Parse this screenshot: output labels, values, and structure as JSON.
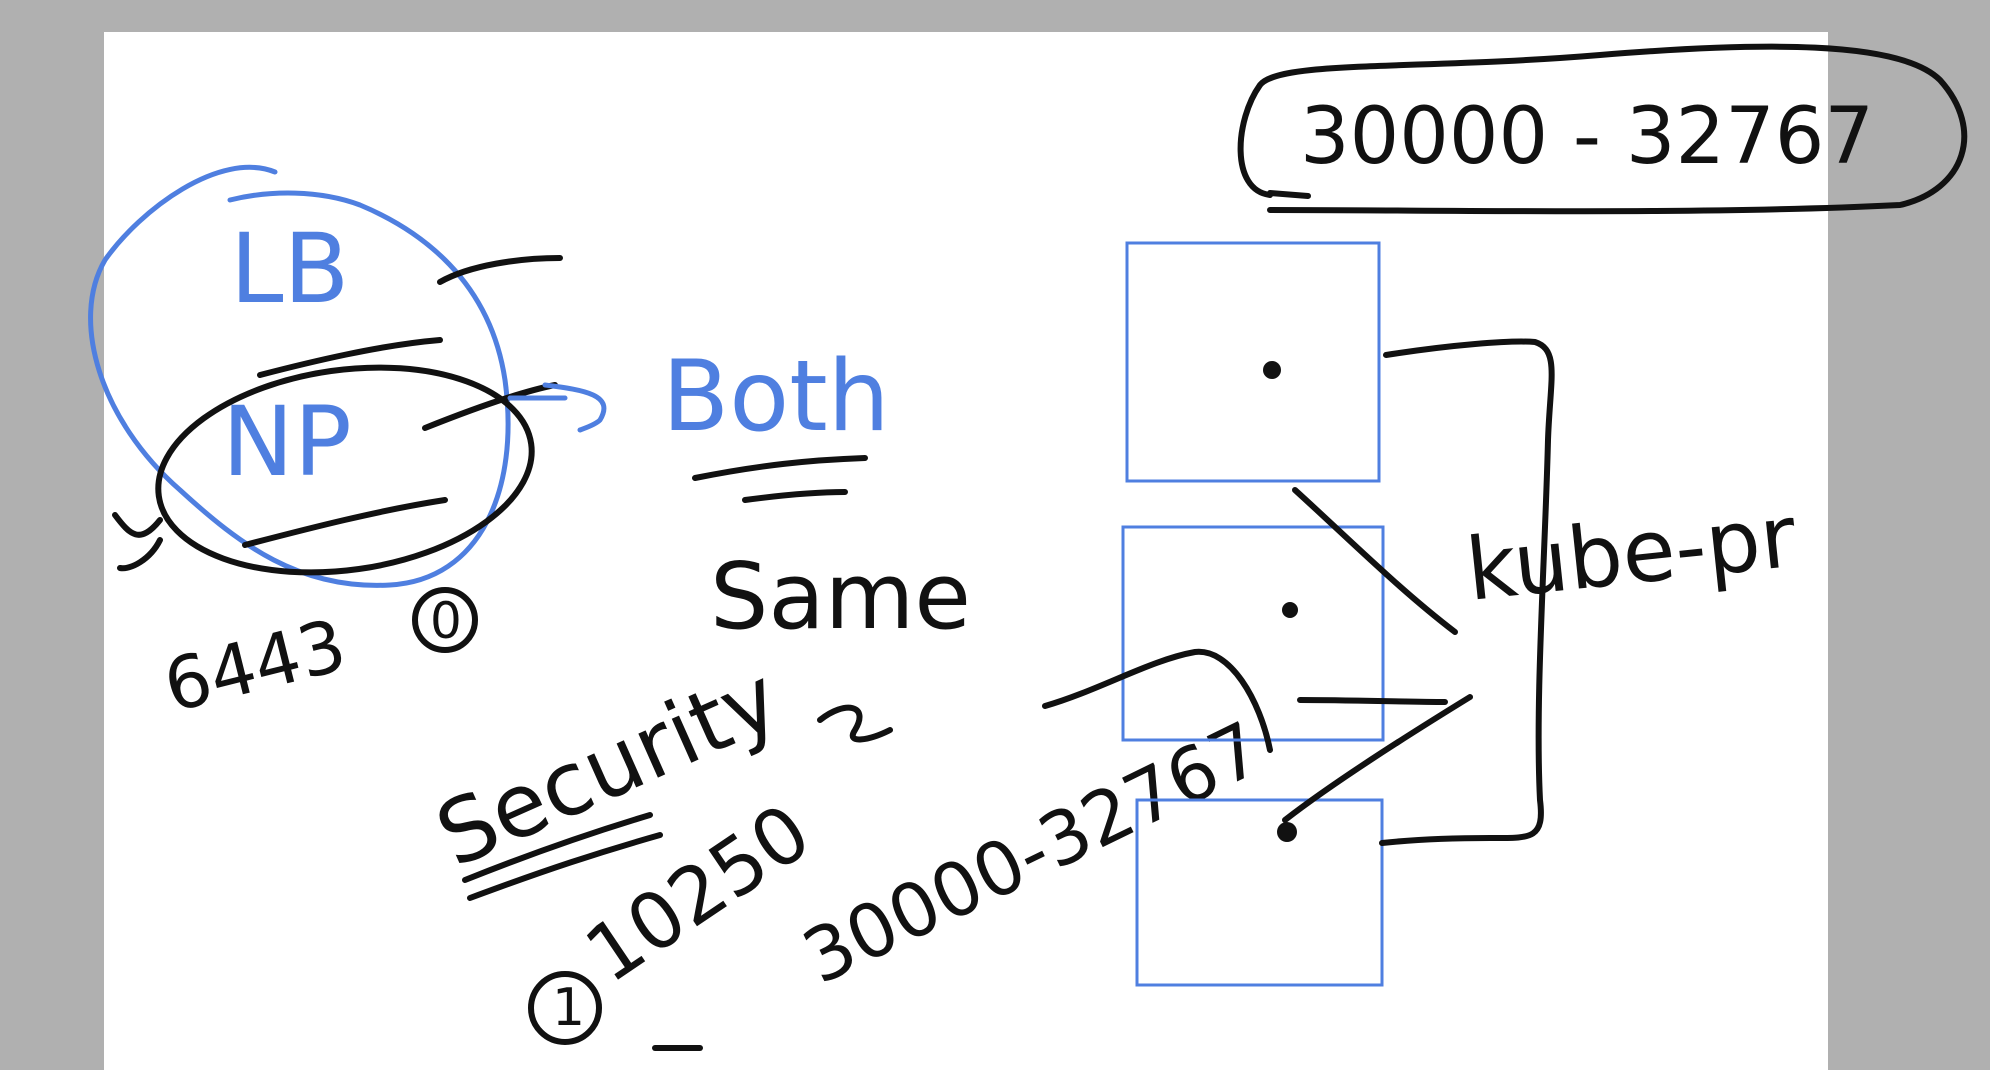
{
  "colors": {
    "background": "#b0b0b0",
    "page": "#ffffff",
    "ink_black": "#111111",
    "ink_blue": "#4f7fe0"
  },
  "notes": {
    "port_range_top": "30000 - 32767",
    "lb": "LB",
    "np": "NP",
    "both": "Both",
    "same": "Same",
    "port_6443": "6443",
    "circled_zero": "0",
    "security": "Security",
    "port_10250": "10250",
    "circled_one": "1",
    "port_range_diag": "30000-32767",
    "kube_proxy": "kube-pr"
  }
}
